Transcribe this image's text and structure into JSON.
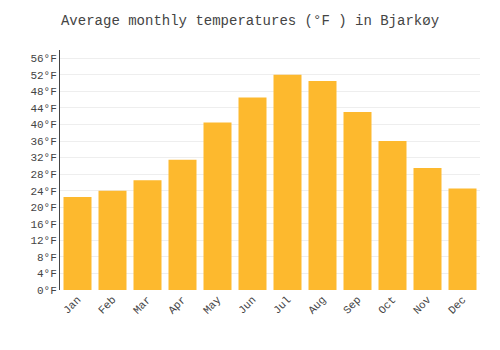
{
  "chart_data": {
    "type": "bar",
    "title": "Average monthly temperatures (°F ) in Bjarkøy",
    "categories": [
      "Jan",
      "Feb",
      "Mar",
      "Apr",
      "May",
      "Jun",
      "Jul",
      "Aug",
      "Sep",
      "Oct",
      "Nov",
      "Dec"
    ],
    "values": [
      22.5,
      24.0,
      26.5,
      31.5,
      40.5,
      46.5,
      52.0,
      50.5,
      43.0,
      36.0,
      29.5,
      24.5
    ],
    "color": "#FDB92E",
    "ylim": [
      0,
      58
    ],
    "yticks": [
      {
        "value": 0,
        "label": "0°F"
      },
      {
        "value": 4,
        "label": "4°F"
      },
      {
        "value": 8,
        "label": "8°F"
      },
      {
        "value": 12,
        "label": "12°F"
      },
      {
        "value": 16,
        "label": "16°F"
      },
      {
        "value": 20,
        "label": "20°F"
      },
      {
        "value": 24,
        "label": "24°F"
      },
      {
        "value": 28,
        "label": "28°F"
      },
      {
        "value": 32,
        "label": "32°F"
      },
      {
        "value": 36,
        "label": "36°F"
      },
      {
        "value": 40,
        "label": "40°F"
      },
      {
        "value": 44,
        "label": "44°F"
      },
      {
        "value": 48,
        "label": "48°F"
      },
      {
        "value": 52,
        "label": "52°F"
      },
      {
        "value": 56,
        "label": "56°F"
      }
    ],
    "grid": true
  }
}
